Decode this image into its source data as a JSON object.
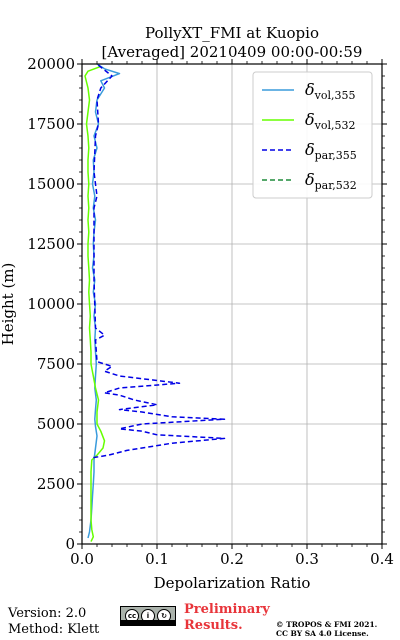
{
  "footer": {
    "version": "Version: 2.0",
    "method": "Method: Klett",
    "preliminary_line1": "Preliminary",
    "preliminary_line2": "Results.",
    "copyright_line1": "© TROPOS & FMI 2021.",
    "copyright_line2": "CC BY SA 4.0 License."
  },
  "chart_data": {
    "type": "line",
    "title_line1": "PollyXT_FMI at Kuopio",
    "title_line2": "[Averaged] 20210409 00:00-00:59",
    "xlabel": "Depolarization Ratio",
    "ylabel": "Height (m)",
    "xlim": [
      0,
      0.4
    ],
    "ylim": [
      0,
      20000
    ],
    "x_ticks": [
      "0.0",
      "0.1",
      "0.2",
      "0.3",
      "0.4"
    ],
    "x_tick_values": [
      0,
      0.1,
      0.2,
      0.3,
      0.4
    ],
    "y_ticks": [
      "0",
      "2500",
      "5000",
      "7500",
      "10000",
      "12500",
      "15000",
      "17500",
      "20000"
    ],
    "y_tick_values": [
      0,
      2500,
      5000,
      7500,
      10000,
      12500,
      15000,
      17500,
      20000
    ],
    "grid": true,
    "legend_position": "top-right",
    "series": [
      {
        "name": "δvol,355",
        "legend_main": "δ",
        "legend_sub": "vol,355",
        "color": "#3a9bdc",
        "dash": "solid",
        "points": [
          [
            0.008,
            250
          ],
          [
            0.01,
            500
          ],
          [
            0.012,
            1000
          ],
          [
            0.013,
            1500
          ],
          [
            0.014,
            2000
          ],
          [
            0.015,
            2500
          ],
          [
            0.016,
            3000
          ],
          [
            0.016,
            3500
          ],
          [
            0.018,
            4000
          ],
          [
            0.02,
            4500
          ],
          [
            0.018,
            4900
          ],
          [
            0.017,
            5200
          ],
          [
            0.018,
            5600
          ],
          [
            0.019,
            6000
          ],
          [
            0.017,
            6500
          ],
          [
            0.018,
            7000
          ],
          [
            0.019,
            7500
          ],
          [
            0.018,
            8000
          ],
          [
            0.017,
            8500
          ],
          [
            0.018,
            9000
          ],
          [
            0.016,
            9500
          ],
          [
            0.018,
            10000
          ],
          [
            0.015,
            10500
          ],
          [
            0.017,
            11000
          ],
          [
            0.014,
            11500
          ],
          [
            0.016,
            12000
          ],
          [
            0.015,
            12500
          ],
          [
            0.016,
            13000
          ],
          [
            0.018,
            13500
          ],
          [
            0.015,
            14000
          ],
          [
            0.017,
            14500
          ],
          [
            0.014,
            15000
          ],
          [
            0.016,
            15500
          ],
          [
            0.015,
            16000
          ],
          [
            0.02,
            16500
          ],
          [
            0.016,
            17000
          ],
          [
            0.022,
            17500
          ],
          [
            0.018,
            18000
          ],
          [
            0.02,
            18500
          ],
          [
            0.03,
            19000
          ],
          [
            0.025,
            19300
          ],
          [
            0.05,
            19600
          ],
          [
            0.03,
            19800
          ],
          [
            0.02,
            20000
          ]
        ]
      },
      {
        "name": "δvol,532",
        "legend_main": "δ",
        "legend_sub": "vol,532",
        "color": "#66ff00",
        "dash": "solid",
        "points": [
          [
            0.012,
            100
          ],
          [
            0.015,
            300
          ],
          [
            0.013,
            600
          ],
          [
            0.012,
            1000
          ],
          [
            0.012,
            1500
          ],
          [
            0.012,
            2000
          ],
          [
            0.012,
            2500
          ],
          [
            0.012,
            3000
          ],
          [
            0.013,
            3500
          ],
          [
            0.02,
            3700
          ],
          [
            0.028,
            4000
          ],
          [
            0.03,
            4300
          ],
          [
            0.025,
            4700
          ],
          [
            0.02,
            5000
          ],
          [
            0.02,
            5500
          ],
          [
            0.022,
            6000
          ],
          [
            0.018,
            6500
          ],
          [
            0.015,
            7000
          ],
          [
            0.012,
            7500
          ],
          [
            0.012,
            8000
          ],
          [
            0.011,
            8500
          ],
          [
            0.01,
            9000
          ],
          [
            0.011,
            9500
          ],
          [
            0.01,
            10000
          ],
          [
            0.009,
            10500
          ],
          [
            0.01,
            11000
          ],
          [
            0.009,
            11500
          ],
          [
            0.008,
            12000
          ],
          [
            0.008,
            12500
          ],
          [
            0.009,
            13000
          ],
          [
            0.008,
            13500
          ],
          [
            0.009,
            14000
          ],
          [
            0.008,
            14500
          ],
          [
            0.009,
            15000
          ],
          [
            0.008,
            15500
          ],
          [
            0.008,
            16000
          ],
          [
            0.009,
            16500
          ],
          [
            0.008,
            17000
          ],
          [
            0.006,
            17500
          ],
          [
            0.008,
            18000
          ],
          [
            0.01,
            18500
          ],
          [
            0.008,
            19000
          ],
          [
            0.004,
            19500
          ],
          [
            0.008,
            19700
          ],
          [
            0.025,
            19900
          ]
        ]
      },
      {
        "name": "δpar,355",
        "legend_main": "δ",
        "legend_sub": "par,355",
        "color": "#0000e6",
        "dash": "dashed",
        "points": [
          [
            0.015,
            3600
          ],
          [
            0.035,
            3700
          ],
          [
            0.06,
            3900
          ],
          [
            0.08,
            4000
          ],
          [
            0.12,
            4200
          ],
          [
            0.19,
            4400
          ],
          [
            0.1,
            4550
          ],
          [
            0.08,
            4700
          ],
          [
            0.05,
            4800
          ],
          [
            0.08,
            5000
          ],
          [
            0.19,
            5200
          ],
          [
            0.12,
            5300
          ],
          [
            0.08,
            5500
          ],
          [
            0.05,
            5600
          ],
          [
            0.1,
            5800
          ],
          [
            0.07,
            6000
          ],
          [
            0.05,
            6200
          ],
          [
            0.03,
            6300
          ],
          [
            0.05,
            6500
          ],
          [
            0.13,
            6700
          ],
          [
            0.09,
            6850
          ],
          [
            0.05,
            7000
          ],
          [
            0.03,
            7200
          ],
          [
            0.04,
            7400
          ],
          [
            0.02,
            7600
          ],
          [
            0.018,
            8500
          ],
          [
            0.03,
            8700
          ],
          [
            0.018,
            9000
          ],
          [
            0.016,
            11000
          ],
          [
            0.016,
            14000
          ],
          [
            0.02,
            14500
          ],
          [
            0.016,
            15500
          ],
          [
            0.018,
            17000
          ],
          [
            0.022,
            17500
          ],
          [
            0.02,
            18500
          ],
          [
            0.025,
            19000
          ],
          [
            0.04,
            19500
          ],
          [
            0.02,
            20000
          ]
        ]
      },
      {
        "name": "δpar,532",
        "legend_main": "δ",
        "legend_sub": "par,532",
        "color": "#1e8c3a",
        "dash": "dashed",
        "points": []
      }
    ]
  }
}
